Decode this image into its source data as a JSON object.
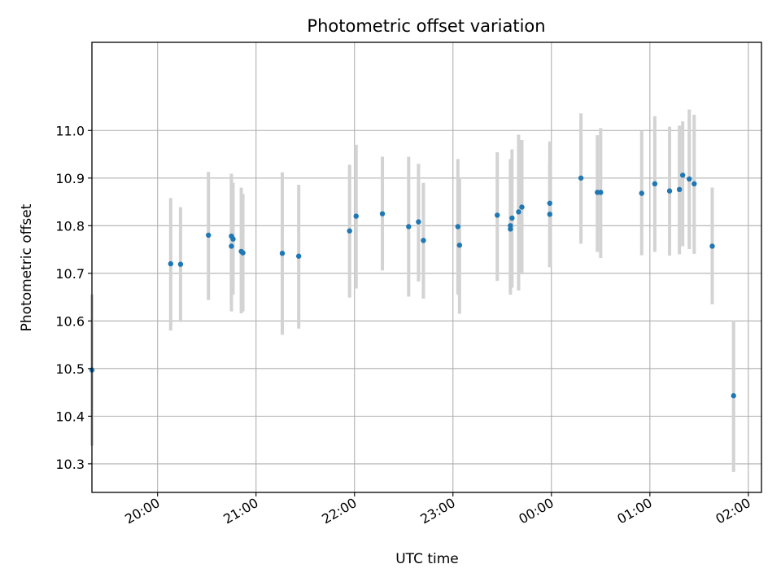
{
  "colors": {
    "point": "#1f77b4",
    "errorbar": "#d3d3d3",
    "grid": "#b0b0b0"
  },
  "chart_data": {
    "type": "scatter",
    "title": "Photometric offset variation",
    "xlabel": "UTC time",
    "ylabel": "Photometric offset",
    "grid": true,
    "legend": null,
    "x_axis_type": "time",
    "xlim": [
      "19:20",
      "02:08"
    ],
    "xticks": [
      "20:00",
      "21:00",
      "22:00",
      "23:00",
      "00:00",
      "01:00",
      "02:00"
    ],
    "ylim": [
      10.24,
      11.185
    ],
    "yticks": [
      "10.3",
      "10.4",
      "10.5",
      "10.6",
      "10.7",
      "10.8",
      "10.9",
      "11.0"
    ],
    "series": [
      {
        "points": [
          {
            "x": "19:20",
            "y": 10.497,
            "low": 10.338,
            "high": 10.656
          },
          {
            "x": "20:08",
            "y": 10.72,
            "low": 10.58,
            "high": 10.858
          },
          {
            "x": "20:14",
            "y": 10.719,
            "low": 10.598,
            "high": 10.839
          },
          {
            "x": "20:31",
            "y": 10.78,
            "low": 10.644,
            "high": 10.913
          },
          {
            "x": "20:45",
            "y": 10.757,
            "low": 10.62,
            "high": 10.909
          },
          {
            "x": "20:45",
            "y": 10.778,
            "low": 10.65,
            "high": 10.905
          },
          {
            "x": "20:46",
            "y": 10.772,
            "low": 10.655,
            "high": 10.89
          },
          {
            "x": "20:51",
            "y": 10.746,
            "low": 10.616,
            "high": 10.88
          },
          {
            "x": "20:52",
            "y": 10.743,
            "low": 10.62,
            "high": 10.867
          },
          {
            "x": "21:16",
            "y": 10.742,
            "low": 10.571,
            "high": 10.912
          },
          {
            "x": "21:26",
            "y": 10.736,
            "low": 10.584,
            "high": 10.886
          },
          {
            "x": "21:57",
            "y": 10.789,
            "low": 10.649,
            "high": 10.928
          },
          {
            "x": "22:01",
            "y": 10.82,
            "low": 10.668,
            "high": 10.97
          },
          {
            "x": "22:17",
            "y": 10.825,
            "low": 10.706,
            "high": 10.945
          },
          {
            "x": "22:33",
            "y": 10.798,
            "low": 10.651,
            "high": 10.945
          },
          {
            "x": "22:39",
            "y": 10.808,
            "low": 10.683,
            "high": 10.93
          },
          {
            "x": "22:42",
            "y": 10.769,
            "low": 10.647,
            "high": 10.89
          },
          {
            "x": "23:03",
            "y": 10.798,
            "low": 10.655,
            "high": 10.94
          },
          {
            "x": "23:04",
            "y": 10.759,
            "low": 10.615,
            "high": 10.9
          },
          {
            "x": "23:27",
            "y": 10.822,
            "low": 10.684,
            "high": 10.954
          },
          {
            "x": "23:35",
            "y": 10.8,
            "low": 10.66,
            "high": 10.94
          },
          {
            "x": "23:35",
            "y": 10.793,
            "low": 10.655,
            "high": 10.93
          },
          {
            "x": "23:36",
            "y": 10.816,
            "low": 10.67,
            "high": 10.96
          },
          {
            "x": "23:40",
            "y": 10.829,
            "low": 10.664,
            "high": 10.991
          },
          {
            "x": "23:42",
            "y": 10.839,
            "low": 10.698,
            "high": 10.98
          },
          {
            "x": "23:59",
            "y": 10.824,
            "low": 10.713,
            "high": 10.935
          },
          {
            "x": "23:59",
            "y": 10.847,
            "low": 10.713,
            "high": 10.977
          },
          {
            "x": "00:18",
            "y": 10.9,
            "low": 10.762,
            "high": 11.036
          },
          {
            "x": "00:28",
            "y": 10.87,
            "low": 10.745,
            "high": 10.99
          },
          {
            "x": "00:30",
            "y": 10.87,
            "low": 10.732,
            "high": 11.005
          },
          {
            "x": "00:55",
            "y": 10.868,
            "low": 10.738,
            "high": 10.999
          },
          {
            "x": "01:03",
            "y": 10.888,
            "low": 10.745,
            "high": 11.03
          },
          {
            "x": "01:12",
            "y": 10.873,
            "low": 10.737,
            "high": 11.008
          },
          {
            "x": "01:18",
            "y": 10.876,
            "low": 10.74,
            "high": 11.01
          },
          {
            "x": "01:20",
            "y": 10.906,
            "low": 10.757,
            "high": 11.019
          },
          {
            "x": "01:24",
            "y": 10.898,
            "low": 10.751,
            "high": 11.044
          },
          {
            "x": "01:27",
            "y": 10.888,
            "low": 10.741,
            "high": 11.033
          },
          {
            "x": "01:38",
            "y": 10.757,
            "low": 10.635,
            "high": 10.88
          },
          {
            "x": "01:51",
            "y": 10.443,
            "low": 10.283,
            "high": 10.601
          }
        ]
      }
    ]
  }
}
